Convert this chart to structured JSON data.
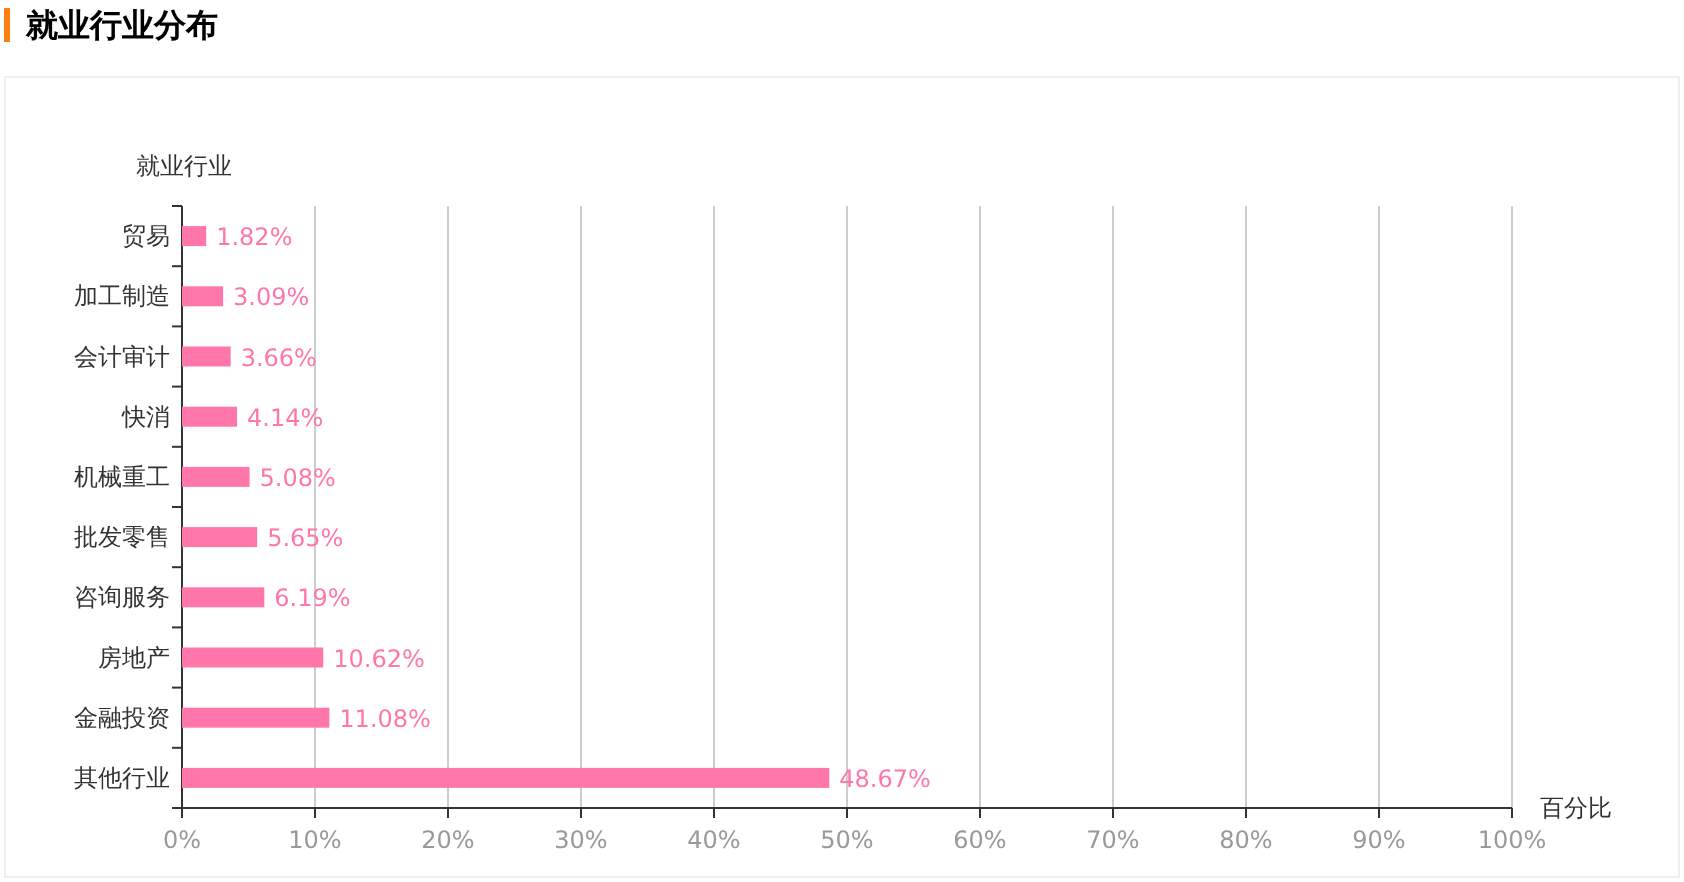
{
  "chart_data": {
    "type": "bar",
    "orientation": "horizontal",
    "title": "就业行业分布",
    "ylabel": "就业行业",
    "xlabel": "百分比",
    "categories": [
      "贸易",
      "加工制造",
      "会计审计",
      "快消",
      "机械重工",
      "批发零售",
      "咨询服务",
      "房地产",
      "金融投资",
      "其他行业"
    ],
    "values": [
      1.82,
      3.09,
      3.66,
      4.14,
      5.08,
      5.65,
      6.19,
      10.62,
      11.08,
      48.67
    ],
    "value_labels": [
      "1.82%",
      "3.09%",
      "3.66%",
      "4.14%",
      "5.08%",
      "5.65%",
      "6.19%",
      "10.62%",
      "11.08%",
      "48.67%"
    ],
    "color": "#ff77aa",
    "xlim": [
      0,
      100
    ],
    "xticks": [
      {
        "value": 0,
        "label": "0%"
      },
      {
        "value": 10,
        "label": "10%"
      },
      {
        "value": 20,
        "label": "20%"
      },
      {
        "value": 30,
        "label": "30%"
      },
      {
        "value": 40,
        "label": "40%"
      },
      {
        "value": 50,
        "label": "50%"
      },
      {
        "value": 60,
        "label": "60%"
      },
      {
        "value": 70,
        "label": "70%"
      },
      {
        "value": 80,
        "label": "80%"
      },
      {
        "value": 90,
        "label": "90%"
      },
      {
        "value": 100,
        "label": "100%"
      }
    ],
    "grid": "x"
  }
}
